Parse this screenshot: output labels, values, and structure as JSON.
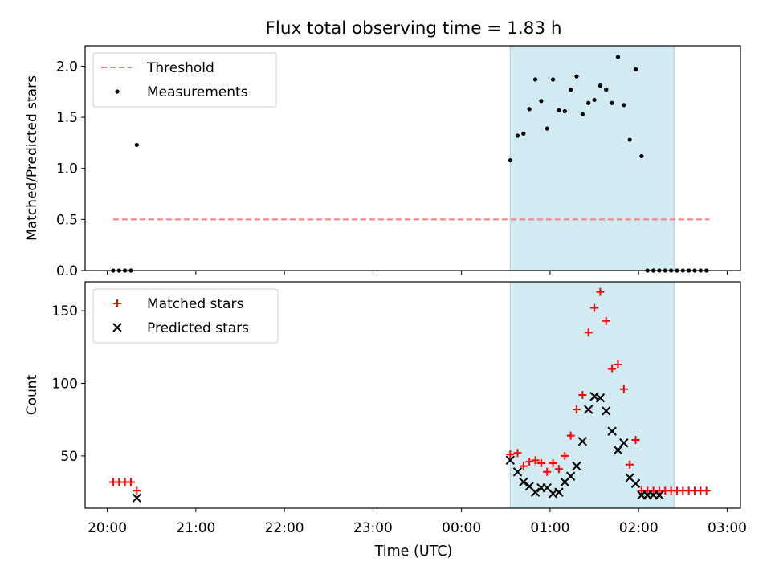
{
  "figure": {
    "title": "Flux total observing time = 1.83 h",
    "xlabel": "Time (UTC)",
    "x_ticks": [
      "20:00",
      "21:00",
      "22:00",
      "23:00",
      "00:00",
      "01:00",
      "02:00",
      "03:00"
    ],
    "colors": {
      "threshold": "#f28080",
      "matched": "#ff0000",
      "predicted": "#000000",
      "measurement": "#000000",
      "shade": "#add8e6"
    }
  },
  "chart_data": [
    {
      "type": "scatter",
      "ylabel": "Matched/Predicted stars",
      "x_range_hours": [
        19.75,
        27.15
      ],
      "ylim": [
        0,
        2.2
      ],
      "y_ticks": [
        0.0,
        0.5,
        1.0,
        1.5,
        2.0
      ],
      "y_tick_labels": [
        "0.0",
        "0.5",
        "1.0",
        "1.5",
        "2.0"
      ],
      "shaded_span": [
        "00:33",
        "02:24"
      ],
      "legend_position": "upper-left",
      "series": [
        {
          "name": "Threshold",
          "style": "dashed-line",
          "x": [
            "20:04",
            "02:48"
          ],
          "y": [
            0.5,
            0.5
          ]
        },
        {
          "name": "Measurements",
          "style": "dots",
          "x": [
            "20:04",
            "20:08",
            "20:12",
            "20:16",
            "20:20",
            "00:33",
            "00:38",
            "00:42",
            "00:46",
            "00:50",
            "00:54",
            "00:58",
            "01:02",
            "01:06",
            "01:10",
            "01:14",
            "01:18",
            "01:22",
            "01:26",
            "01:30",
            "01:34",
            "01:38",
            "01:42",
            "01:46",
            "01:50",
            "01:54",
            "01:58",
            "02:02",
            "02:06",
            "02:10",
            "02:14",
            "02:18",
            "02:22",
            "02:26",
            "02:30",
            "02:34",
            "02:38",
            "02:42",
            "02:46"
          ],
          "y": [
            0,
            0,
            0,
            0,
            1.23,
            1.08,
            1.32,
            1.34,
            1.58,
            1.87,
            1.66,
            1.39,
            1.87,
            1.57,
            1.56,
            1.77,
            1.9,
            1.53,
            1.64,
            1.67,
            1.81,
            1.77,
            1.64,
            2.09,
            1.62,
            1.28,
            1.97,
            1.12,
            0,
            0,
            0,
            0,
            0,
            0,
            0,
            0,
            0,
            0,
            0
          ]
        }
      ]
    },
    {
      "type": "scatter",
      "ylabel": "Count",
      "x_range_hours": [
        19.75,
        27.15
      ],
      "ylim": [
        14,
        170
      ],
      "y_ticks": [
        50,
        100,
        150
      ],
      "y_tick_labels": [
        "50",
        "100",
        "150"
      ],
      "shaded_span": [
        "00:33",
        "02:24"
      ],
      "legend_position": "upper-left",
      "series": [
        {
          "name": "Matched stars",
          "marker": "plus",
          "x": [
            "20:04",
            "20:08",
            "20:12",
            "20:16",
            "20:20",
            "00:33",
            "00:38",
            "00:42",
            "00:46",
            "00:50",
            "00:54",
            "00:58",
            "01:02",
            "01:06",
            "01:10",
            "01:14",
            "01:18",
            "01:22",
            "01:26",
            "01:30",
            "01:34",
            "01:38",
            "01:42",
            "01:46",
            "01:50",
            "01:54",
            "01:58",
            "02:02",
            "02:06",
            "02:10",
            "02:14",
            "02:18",
            "02:22",
            "02:26",
            "02:30",
            "02:34",
            "02:38",
            "02:42",
            "02:46"
          ],
          "y": [
            32,
            32,
            32,
            32,
            26,
            51,
            52,
            43,
            46,
            47,
            45,
            39,
            45,
            41,
            50,
            64,
            82,
            92,
            135,
            152,
            163,
            143,
            110,
            113,
            96,
            44,
            61,
            26,
            26,
            26,
            26,
            26,
            26,
            26,
            26,
            26,
            26,
            26,
            26
          ]
        },
        {
          "name": "Predicted stars",
          "marker": "x",
          "x": [
            "20:20",
            "00:33",
            "00:38",
            "00:42",
            "00:46",
            "00:50",
            "00:54",
            "00:58",
            "01:02",
            "01:06",
            "01:10",
            "01:14",
            "01:18",
            "01:22",
            "01:26",
            "01:30",
            "01:34",
            "01:38",
            "01:42",
            "01:46",
            "01:50",
            "01:54",
            "01:58",
            "02:02",
            "02:06",
            "02:10",
            "02:14"
          ],
          "y": [
            21,
            47,
            39,
            32,
            29,
            25,
            28,
            28,
            24,
            25,
            32,
            36,
            43,
            60,
            82,
            91,
            90,
            81,
            67,
            54,
            59,
            35,
            31,
            23,
            23,
            23,
            23
          ]
        }
      ]
    }
  ]
}
